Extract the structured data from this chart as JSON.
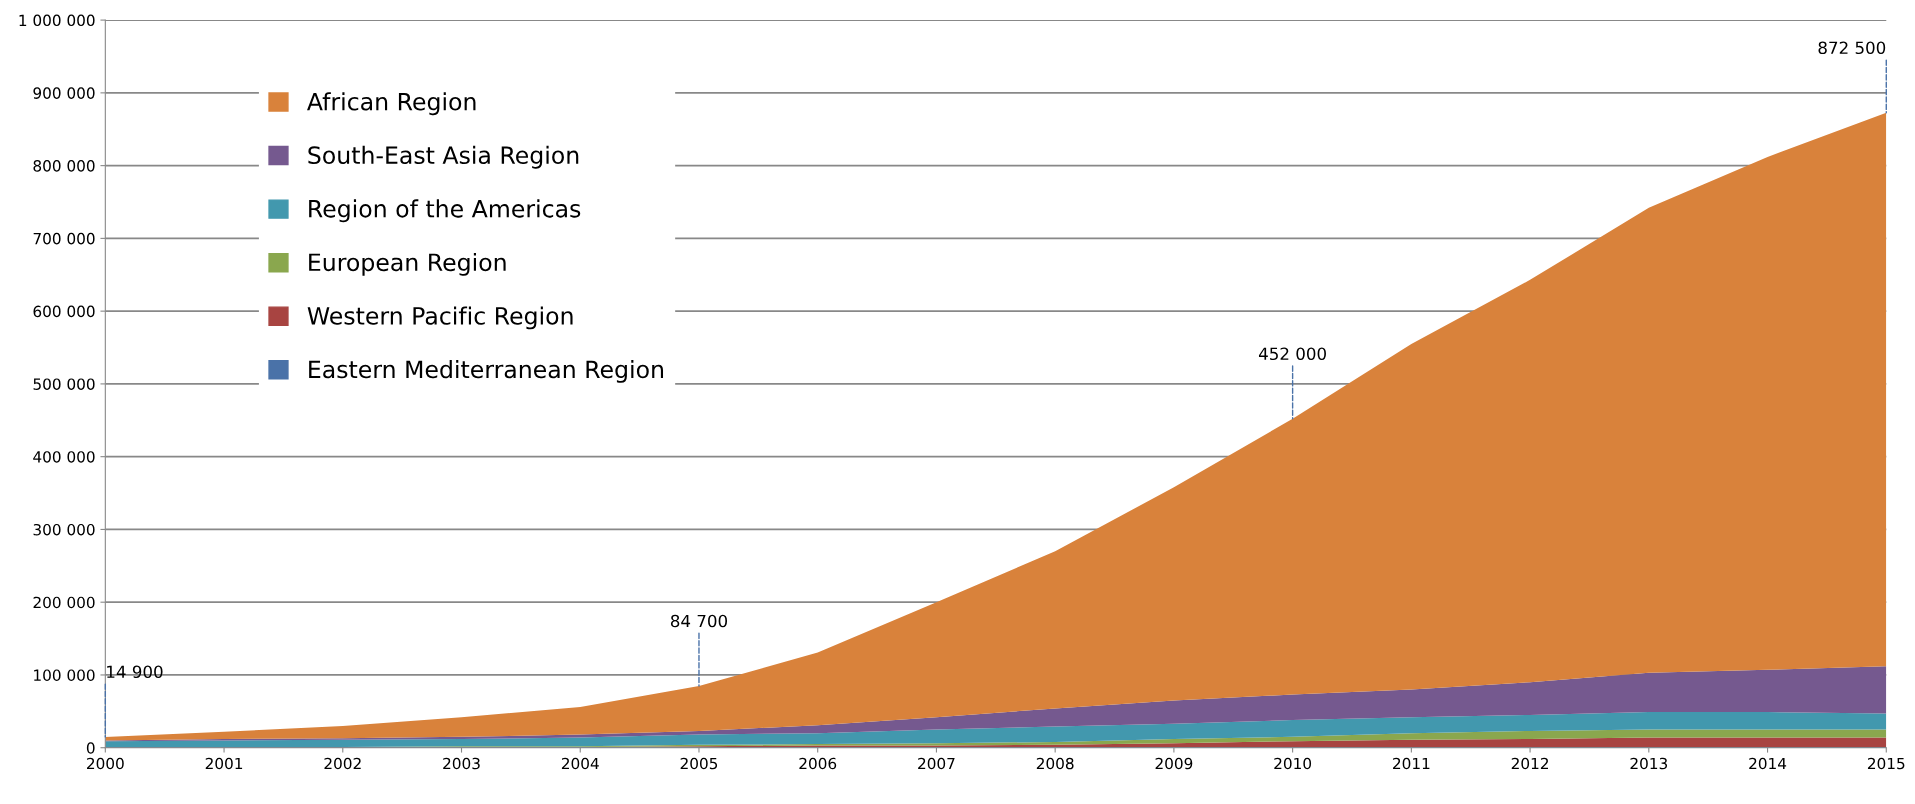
{
  "chart_data": {
    "type": "area",
    "stacked": true,
    "x": [
      2000,
      2001,
      2002,
      2003,
      2004,
      2005,
      2006,
      2007,
      2008,
      2009,
      2010,
      2011,
      2012,
      2013,
      2014,
      2015
    ],
    "series": [
      {
        "name": "Eastern Mediterranean Region",
        "color": "#4a72a8",
        "values": [
          1000,
          1000,
          1000,
          1000,
          1000,
          1000,
          1000,
          1000,
          1000,
          1000,
          1000,
          1000,
          1000,
          1000,
          1000,
          1000
        ]
      },
      {
        "name": "Western Pacific Region",
        "color": "#a84441",
        "values": [
          0,
          0,
          0,
          0,
          0,
          1000,
          2000,
          2000,
          3000,
          5000,
          8000,
          10000,
          11000,
          13000,
          13000,
          13000
        ]
      },
      {
        "name": "European Region",
        "color": "#8aa74e",
        "values": [
          0,
          0,
          0,
          1000,
          1000,
          2000,
          2000,
          3000,
          4000,
          6000,
          6000,
          9000,
          11000,
          11000,
          11000,
          11000
        ]
      },
      {
        "name": "Region of the Americas",
        "color": "#4298ae",
        "values": [
          8000,
          9000,
          10000,
          10000,
          12000,
          14000,
          15000,
          19000,
          21000,
          21000,
          23000,
          22000,
          22000,
          24000,
          24000,
          22000
        ]
      },
      {
        "name": "South-East Asia Region",
        "color": "#75598f",
        "values": [
          1000,
          2000,
          2000,
          3000,
          4000,
          5000,
          11000,
          17000,
          25000,
          32000,
          35000,
          38000,
          45000,
          54000,
          58000,
          65000
        ]
      },
      {
        "name": "African Region",
        "color": "#d9823b",
        "values": [
          4900,
          10000,
          17000,
          27000,
          38000,
          61700,
          100000,
          158000,
          216000,
          293000,
          379000,
          475000,
          553000,
          639000,
          705000,
          760500
        ]
      }
    ],
    "annotations": [
      {
        "text": "14 900",
        "x": 2000,
        "y": 14900
      },
      {
        "text": "84 700",
        "x": 2005,
        "y": 84700
      },
      {
        "text": "452 000",
        "x": 2010,
        "y": 452000
      },
      {
        "text": "872 500",
        "x": 2015,
        "y": 872500
      }
    ],
    "xlim": [
      2000,
      2015
    ],
    "xticks": [
      2000,
      2001,
      2002,
      2003,
      2004,
      2005,
      2006,
      2007,
      2008,
      2009,
      2010,
      2011,
      2012,
      2013,
      2014,
      2015
    ],
    "ylim": [
      0,
      1000000
    ],
    "yticks": [
      0,
      {
        "value": 100000,
        "label": "100 000"
      },
      {
        "value": 200000,
        "label": "200 000"
      },
      {
        "value": 300000,
        "label": "300 000"
      },
      {
        "value": 400000,
        "label": "400 000"
      },
      {
        "value": 500000,
        "label": "500 000"
      },
      {
        "value": 600000,
        "label": "600 000"
      },
      {
        "value": 700000,
        "label": "700 000"
      },
      {
        "value": 800000,
        "label": "800 000"
      },
      {
        "value": 900000,
        "label": "900 000"
      },
      {
        "value": 1000000,
        "label": "1 000 000"
      }
    ],
    "grid": "y",
    "legend": "top left"
  }
}
